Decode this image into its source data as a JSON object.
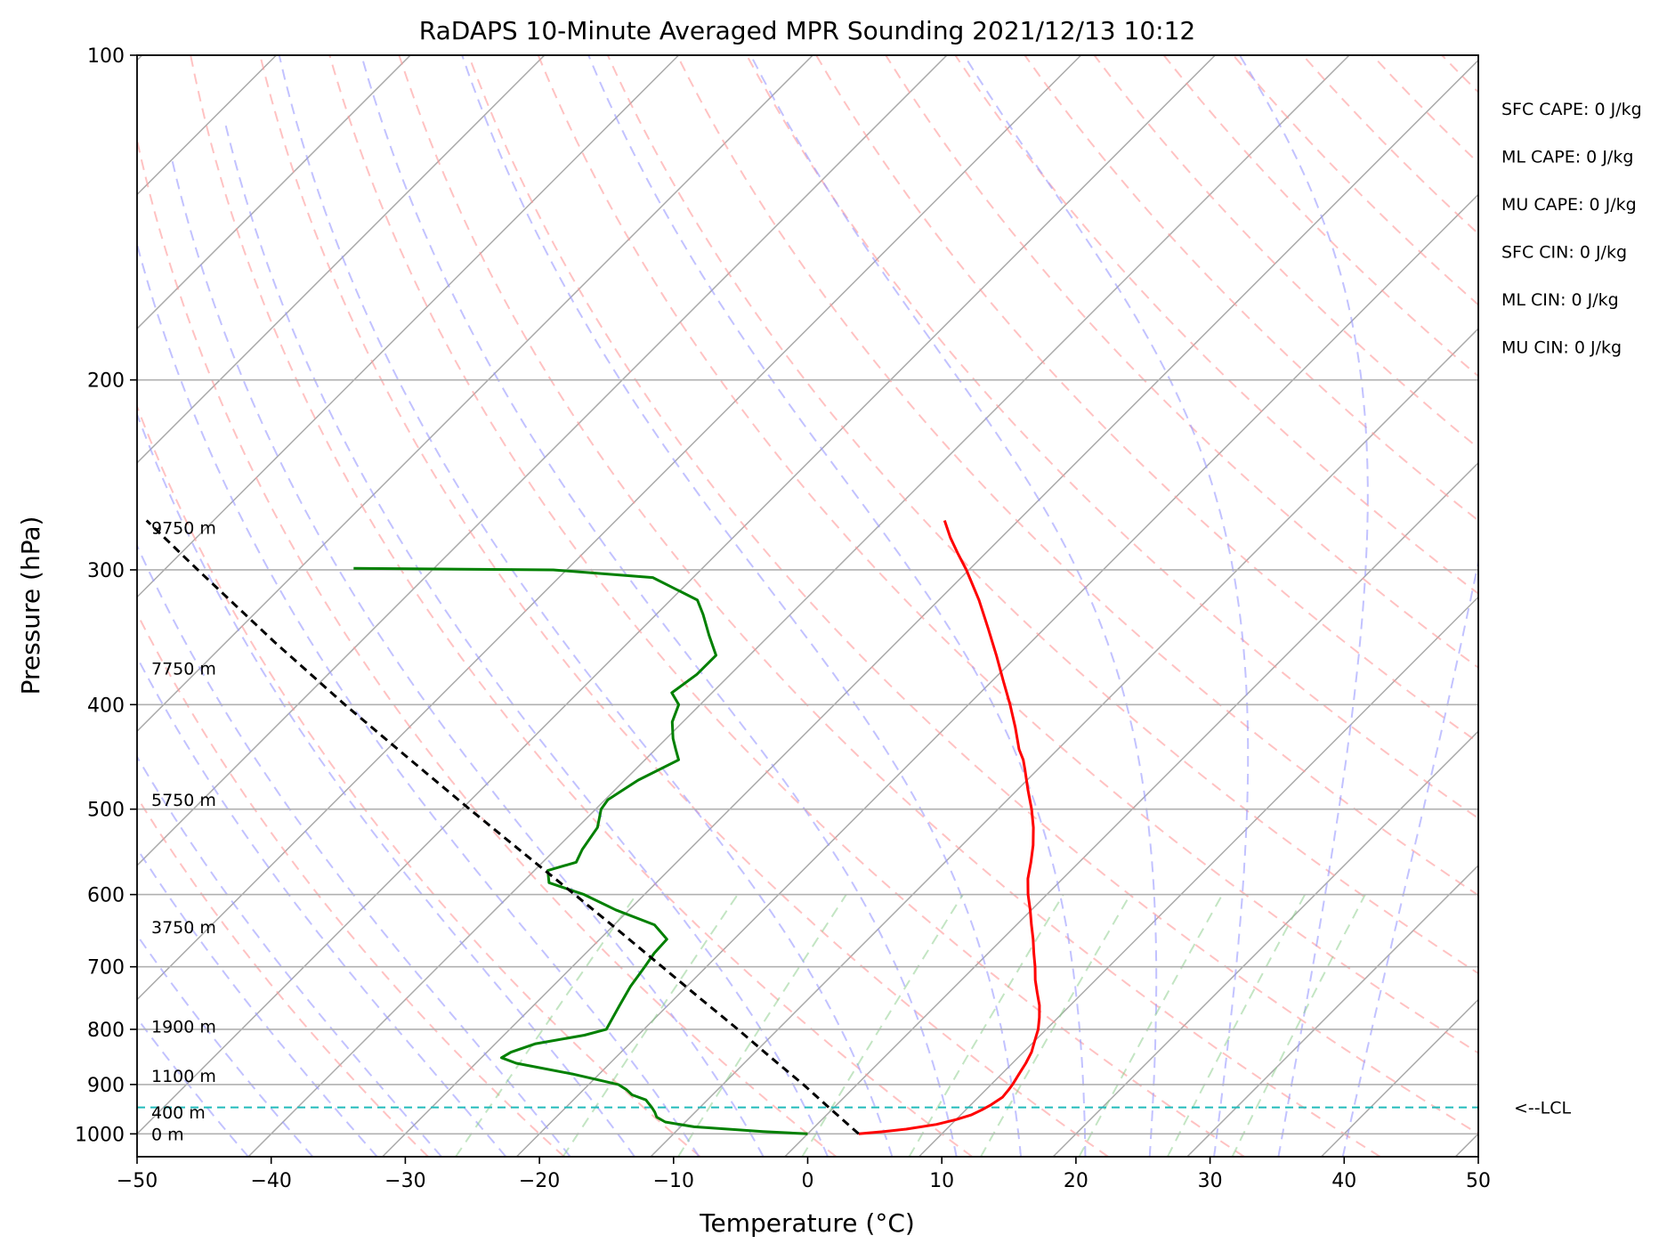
{
  "chart_data": {
    "type": "line",
    "title": "RaDAPS 10-Minute Averaged MPR Sounding 2021/12/13 10:12",
    "xlabel": "Temperature (°C)",
    "ylabel": "Pressure (hPa)",
    "xlim": [
      -50,
      50
    ],
    "ylim": [
      1050,
      100
    ],
    "y_scale": "log",
    "skew_t": true,
    "x_ticks": [
      -50,
      -40,
      -30,
      -20,
      -10,
      0,
      10,
      20,
      30,
      40,
      50
    ],
    "x_tick_labels": [
      "−50",
      "−40",
      "−30",
      "−20",
      "−10",
      "0",
      "10",
      "20",
      "30",
      "40",
      "50"
    ],
    "y_ticks": [
      100,
      200,
      300,
      400,
      500,
      600,
      700,
      800,
      900,
      1000
    ],
    "y_tick_labels": [
      "100",
      "200",
      "300",
      "400",
      "500",
      "600",
      "700",
      "800",
      "900",
      "1000"
    ],
    "grid": true,
    "series": [
      {
        "id": "temperature",
        "color": "#ff0000",
        "points": [
          [
            1000,
            3.8
          ],
          [
            995,
            5.5
          ],
          [
            990,
            7.0
          ],
          [
            980,
            8.9
          ],
          [
            970,
            10.0
          ],
          [
            960,
            10.8
          ],
          [
            950,
            11.2
          ],
          [
            940,
            11.5
          ],
          [
            925,
            11.8
          ],
          [
            910,
            11.7
          ],
          [
            900,
            11.6
          ],
          [
            880,
            11.3
          ],
          [
            860,
            11.0
          ],
          [
            840,
            10.6
          ],
          [
            820,
            10.0
          ],
          [
            800,
            9.4
          ],
          [
            780,
            8.6
          ],
          [
            760,
            7.7
          ],
          [
            740,
            6.6
          ],
          [
            720,
            5.5
          ],
          [
            700,
            4.5
          ],
          [
            680,
            3.4
          ],
          [
            660,
            2.3
          ],
          [
            640,
            1.1
          ],
          [
            620,
            -0.1
          ],
          [
            600,
            -1.4
          ],
          [
            580,
            -2.6
          ],
          [
            560,
            -3.6
          ],
          [
            540,
            -4.7
          ],
          [
            520,
            -6.0
          ],
          [
            500,
            -7.5
          ],
          [
            480,
            -9.2
          ],
          [
            460,
            -10.9
          ],
          [
            450,
            -11.8
          ],
          [
            440,
            -12.9
          ],
          [
            420,
            -14.8
          ],
          [
            400,
            -16.9
          ],
          [
            380,
            -19.2
          ],
          [
            360,
            -21.6
          ],
          [
            340,
            -24.2
          ],
          [
            320,
            -27.0
          ],
          [
            300,
            -30.2
          ],
          [
            290,
            -32.0
          ],
          [
            280,
            -33.8
          ],
          [
            270,
            -35.5
          ]
        ]
      },
      {
        "id": "dewpoint",
        "color": "#008000",
        "points": [
          [
            1000,
            0.0
          ],
          [
            995,
            -3.5
          ],
          [
            985,
            -9.0
          ],
          [
            975,
            -11.5
          ],
          [
            965,
            -12.5
          ],
          [
            955,
            -13.0
          ],
          [
            945,
            -13.6
          ],
          [
            930,
            -14.6
          ],
          [
            920,
            -16.0
          ],
          [
            910,
            -16.8
          ],
          [
            900,
            -17.8
          ],
          [
            880,
            -22.0
          ],
          [
            860,
            -27.0
          ],
          [
            850,
            -28.5
          ],
          [
            840,
            -28.2
          ],
          [
            825,
            -27.0
          ],
          [
            810,
            -24.0
          ],
          [
            800,
            -22.8
          ],
          [
            790,
            -23.0
          ],
          [
            760,
            -23.6
          ],
          [
            730,
            -24.2
          ],
          [
            700,
            -24.6
          ],
          [
            680,
            -24.9
          ],
          [
            660,
            -25.0
          ],
          [
            640,
            -27.0
          ],
          [
            620,
            -31.0
          ],
          [
            600,
            -34.5
          ],
          [
            585,
            -38.0
          ],
          [
            570,
            -39.0
          ],
          [
            560,
            -37.5
          ],
          [
            545,
            -38.0
          ],
          [
            520,
            -38.5
          ],
          [
            500,
            -39.6
          ],
          [
            490,
            -39.8
          ],
          [
            470,
            -39.0
          ],
          [
            450,
            -37.5
          ],
          [
            440,
            -38.5
          ],
          [
            430,
            -39.5
          ],
          [
            415,
            -40.8
          ],
          [
            400,
            -41.6
          ],
          [
            390,
            -43.0
          ],
          [
            375,
            -42.5
          ],
          [
            360,
            -42.5
          ],
          [
            345,
            -44.5
          ],
          [
            330,
            -46.5
          ],
          [
            320,
            -48.0
          ],
          [
            305,
            -53.0
          ],
          [
            300,
            -61.0
          ],
          [
            299,
            -76.0
          ]
        ]
      },
      {
        "id": "parcel",
        "color": "#000000",
        "dashed": true,
        "points": [
          [
            1000,
            3.8
          ],
          [
            945,
            -0.4
          ],
          [
            900,
            -4.0
          ],
          [
            850,
            -8.4
          ],
          [
            800,
            -13.0
          ],
          [
            750,
            -18.0
          ],
          [
            700,
            -23.3
          ],
          [
            650,
            -29.0
          ],
          [
            600,
            -35.2
          ],
          [
            550,
            -42.0
          ],
          [
            500,
            -49.4
          ],
          [
            450,
            -57.5
          ],
          [
            400,
            -66.5
          ],
          [
            350,
            -76.4
          ],
          [
            300,
            -87.5
          ],
          [
            270,
            -95.0
          ]
        ]
      }
    ],
    "lcl": {
      "pressure": 945,
      "label": "<--LCL"
    },
    "height_labels": [
      {
        "label": "9750 m",
        "pressure": 274
      },
      {
        "label": "7750 m",
        "pressure": 370
      },
      {
        "label": "5750 m",
        "pressure": 490
      },
      {
        "label": "3750 m",
        "pressure": 643
      },
      {
        "label": "1900 m",
        "pressure": 795
      },
      {
        "label": "1100 m",
        "pressure": 883
      },
      {
        "label": "400 m",
        "pressure": 955
      },
      {
        "label": "0 m",
        "pressure": 1000
      }
    ],
    "parameters": [
      "SFC CAPE: 0 J/kg",
      "ML CAPE: 0 J/kg",
      "MU CAPE: 0 J/kg",
      "SFC CIN: 0 J/kg",
      "ML CIN: 0 J/kg",
      "MU CIN: 0 J/kg"
    ],
    "background_lines": {
      "isotherms_color": "#aaaaaa",
      "dry_adiabats_color": "#ff9999",
      "moist_adiabats_color": "#9999ff",
      "mixing_ratio_color": "#88cc88",
      "lcl_color": "#22bbbb"
    }
  }
}
